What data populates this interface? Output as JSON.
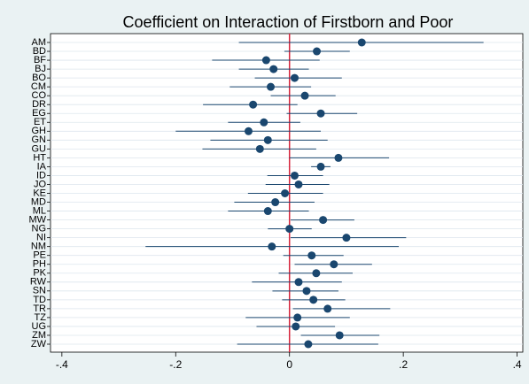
{
  "chart_data": {
    "type": "coefplot",
    "title": "Coefficient on Interaction of Firstborn and Poor",
    "categories": [
      "AM",
      "BD",
      "BF",
      "BJ",
      "BO",
      "CM",
      "CO",
      "DR",
      "EG",
      "ET",
      "GH",
      "GN",
      "GU",
      "HT",
      "IA",
      "ID",
      "JO",
      "KE",
      "MD",
      "ML",
      "MW",
      "NG",
      "NI",
      "NM",
      "PE",
      "PH",
      "PK",
      "RW",
      "SN",
      "TD",
      "TR",
      "TZ",
      "UG",
      "ZM",
      "ZW"
    ],
    "values": [
      0.127,
      0.048,
      -0.041,
      -0.028,
      0.009,
      -0.033,
      0.027,
      -0.064,
      0.055,
      -0.045,
      -0.072,
      -0.038,
      -0.052,
      0.086,
      0.055,
      0.009,
      0.016,
      -0.008,
      -0.025,
      -0.038,
      0.059,
      0,
      0.1,
      -0.031,
      0.039,
      0.078,
      0.047,
      0.016,
      0.03,
      0.042,
      0.067,
      0.014,
      0.011,
      0.088,
      0.033
    ],
    "lower": [
      -0.089,
      -0.009,
      -0.136,
      -0.089,
      -0.061,
      -0.105,
      -0.033,
      -0.152,
      -0.005,
      -0.108,
      -0.2,
      -0.139,
      -0.153,
      0,
      0.038,
      -0.039,
      -0.042,
      -0.073,
      -0.097,
      -0.108,
      0.002,
      -0.038,
      0.002,
      -0.253,
      -0.011,
      0.009,
      -0.019,
      -0.066,
      -0.03,
      -0.013,
      0.006,
      -0.077,
      -0.058,
      0.02,
      -0.092
    ],
    "upper": [
      0.341,
      0.106,
      0.053,
      0.034,
      0.092,
      0.038,
      0.081,
      0.014,
      0.119,
      0.019,
      0.055,
      0.067,
      0.047,
      0.175,
      0.072,
      0.059,
      0.07,
      0.059,
      0.044,
      0.034,
      0.114,
      0.039,
      0.205,
      0.192,
      0.095,
      0.145,
      0.111,
      0.092,
      0.086,
      0.098,
      0.177,
      0.106,
      0.08,
      0.158,
      0.156
    ],
    "color": "#1a476f",
    "reference_line": 0,
    "reference_color": "#d6263d",
    "xlim": [
      -0.42,
      0.41
    ],
    "xticks": [
      {
        "value": -0.4,
        "label": "-.4"
      },
      {
        "value": -0.2,
        "label": "-.2"
      },
      0,
      {
        "value": 0.2,
        "label": ".2"
      },
      {
        "value": 0.4,
        "label": ".4"
      }
    ],
    "grid": true
  }
}
